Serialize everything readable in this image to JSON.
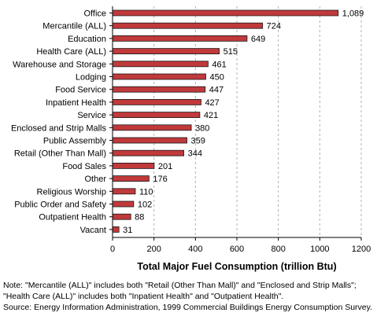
{
  "chart_data": {
    "type": "bar",
    "orientation": "horizontal",
    "categories": [
      "Office",
      "Mercantile (ALL)",
      "Education",
      "Health Care (ALL)",
      "Warehouse and Storage",
      "Lodging",
      "Food Service",
      "Inpatient Health",
      "Service",
      "Enclosed and Strip Malls",
      "Public Assembly",
      "Retail (Other Than Mall)",
      "Food Sales",
      "Other",
      "Religious Worship",
      "Public Order and Safety",
      "Outpatient Health",
      "Vacant"
    ],
    "values": [
      1089,
      724,
      649,
      515,
      461,
      450,
      447,
      427,
      421,
      380,
      359,
      344,
      201,
      176,
      110,
      102,
      88,
      31
    ],
    "value_labels": [
      "1,089",
      "724",
      "649",
      "515",
      "461",
      "450",
      "447",
      "427",
      "421",
      "380",
      "359",
      "344",
      "201",
      "176",
      "110",
      "102",
      "88",
      "31"
    ],
    "xlim": [
      0,
      1200
    ],
    "xticks": [
      "0",
      "200",
      "400",
      "600",
      "800",
      "1000",
      "1200"
    ],
    "xlabel": "Total Major Fuel Consumption (trillion Btu)",
    "ylabel": "",
    "title": "",
    "grid": "vertical dashed",
    "bar_color": "#c0393b",
    "bar_border_color": "#1a1a1a",
    "grid_color": "#b0b0b0"
  },
  "notes": {
    "line1": "Note: \"Mercantile (ALL)\" includes both \"Retail (Other Than Mall)\" and \"Enclosed and Strip Malls\";",
    "line2": "\"Health Care (ALL)\" includes both \"Inpatient Health\" and \"Outpatient Health\".",
    "source": "Source: Energy Information Administration, 1999 Commercial Buildings Energy Consumption Survey."
  }
}
